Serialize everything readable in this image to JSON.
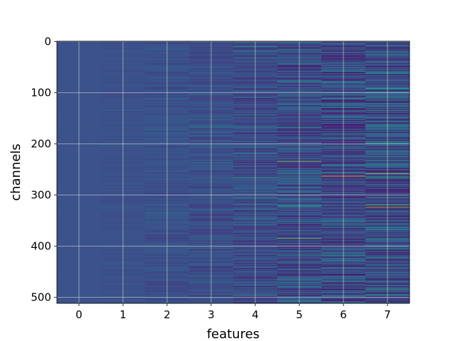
{
  "chart_data": {
    "type": "heatmap",
    "title": "",
    "xlabel": "features",
    "ylabel": "channels",
    "x_categories": [
      0,
      1,
      2,
      3,
      4,
      5,
      6,
      7
    ],
    "x_tick_labels": [
      "0",
      "1",
      "2",
      "3",
      "4",
      "5",
      "6",
      "7"
    ],
    "y_ticks": [
      0,
      100,
      200,
      300,
      400,
      500
    ],
    "y_tick_labels": [
      "0",
      "100",
      "200",
      "300",
      "400",
      "500"
    ],
    "xlim": [
      -0.5,
      7.5
    ],
    "ylim": [
      512,
      -0.5
    ],
    "rows": 512,
    "colormap": "viridis",
    "grid": true,
    "background_value_color": "#3b528b",
    "column_intensity_scale": [
      0.02,
      0.04,
      0.08,
      0.13,
      0.2,
      0.27,
      0.33,
      0.36
    ],
    "notable_cells": [
      {
        "feature": 4,
        "channel": 2,
        "value": 0.55
      },
      {
        "feature": 4,
        "channel": 218,
        "value": 0.5
      },
      {
        "feature": 4,
        "channel": 266,
        "value": 0.62
      },
      {
        "feature": 5,
        "channel": 15,
        "value": 0.5
      },
      {
        "feature": 5,
        "channel": 108,
        "value": 0.45
      },
      {
        "feature": 5,
        "channel": 182,
        "value": 0.45
      },
      {
        "feature": 5,
        "channel": 234,
        "value": 0.82
      },
      {
        "feature": 5,
        "channel": 258,
        "value": 0.5
      },
      {
        "feature": 5,
        "channel": 385,
        "value": 0.78
      },
      {
        "feature": 5,
        "channel": 432,
        "value": 0.5
      },
      {
        "feature": 6,
        "channel": 210,
        "value": 0.5
      },
      {
        "feature": 6,
        "channel": 263,
        "value": 0.98
      },
      {
        "feature": 6,
        "channel": 468,
        "value": 0.5
      },
      {
        "feature": 7,
        "channel": 62,
        "value": 0.5
      },
      {
        "feature": 7,
        "channel": 135,
        "value": 0.55
      },
      {
        "feature": 7,
        "channel": 258,
        "value": 0.85
      },
      {
        "feature": 7,
        "channel": 324,
        "value": 0.9
      },
      {
        "feature": 7,
        "channel": 400,
        "value": 0.45
      }
    ]
  }
}
